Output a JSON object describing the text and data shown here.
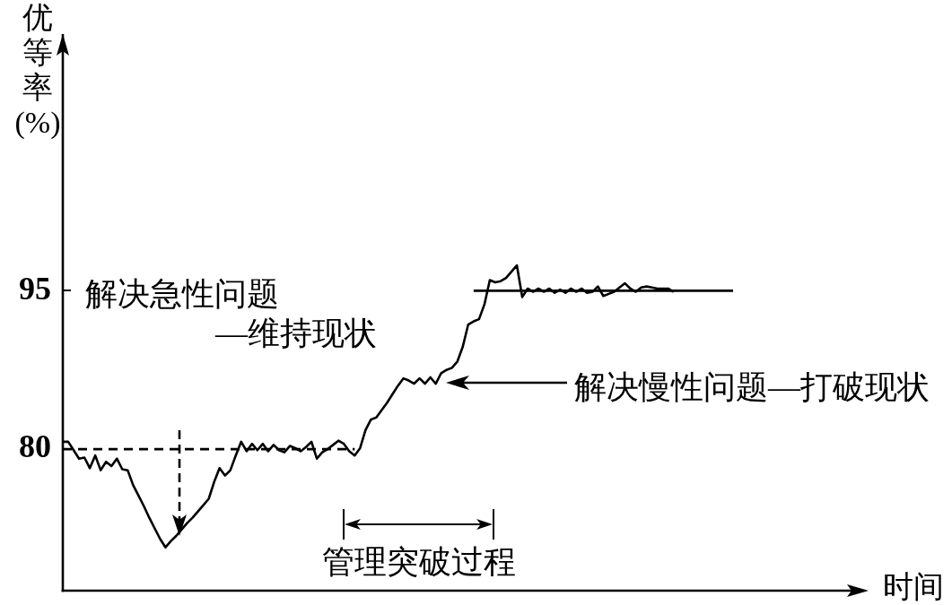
{
  "chart_data": {
    "type": "line",
    "xlabel": "时间",
    "ylabel": "优等率(%)",
    "categories": [
      null,
      null,
      null,
      null,
      null,
      null,
      null,
      null,
      null,
      null,
      null,
      null,
      null,
      null,
      null,
      null,
      null,
      null,
      null,
      null,
      null,
      null,
      null,
      null,
      null,
      null,
      null,
      null,
      null,
      null,
      null,
      null,
      null,
      null,
      null,
      null,
      null,
      null,
      null,
      null,
      null,
      null,
      null,
      null,
      null,
      null,
      null,
      null,
      null,
      null,
      null,
      null,
      null,
      null,
      null,
      null,
      null,
      null,
      null,
      null,
      null,
      null,
      null,
      null,
      null,
      null,
      null,
      null,
      null,
      null,
      null,
      null,
      null,
      null,
      null,
      null,
      null,
      null,
      null,
      null,
      null,
      null,
      null,
      null,
      null,
      null,
      null,
      null,
      null,
      null,
      null,
      null,
      null,
      null,
      null,
      null,
      null,
      null,
      null,
      null,
      null,
      null,
      null,
      null,
      null,
      null,
      null,
      null,
      null,
      null,
      null,
      null,
      null,
      null,
      null,
      null,
      null,
      null,
      null,
      null,
      null,
      null,
      null,
      null,
      null
    ],
    "series": [
      {
        "color": "#000000",
        "line_style": "solid",
        "values": [
          80.7,
          80.7,
          79.9,
          79.1,
          79.2,
          78.2,
          79.4,
          78.0,
          78.8,
          78.4,
          79.1,
          78.1,
          78.0,
          76.6,
          75.6,
          74.6,
          73.5,
          72.5,
          71.5,
          70.7,
          71.3,
          71.8,
          72.4,
          73.0,
          73.5,
          74.1,
          74.7,
          75.3,
          76.9,
          78.2,
          77.5,
          78.0,
          79.4,
          80.7,
          79.8,
          80.5,
          79.9,
          80.5,
          79.8,
          80.4,
          79.9,
          79.7,
          80.3,
          80.1,
          79.8,
          80.2,
          80.7,
          79.1,
          79.7,
          80.0,
          80.4,
          80.8,
          80.5,
          79.8,
          79.4,
          80.1,
          81.8,
          82.8,
          83.0,
          83.7,
          84.4,
          85.2,
          86.0,
          86.7,
          86.5,
          86.2,
          86.7,
          86.2,
          86.8,
          86.2,
          87.2,
          87.5,
          87.7,
          88.3,
          89.7,
          91.8,
          92.1,
          92.3,
          93.7,
          96.0,
          95.8,
          95.9,
          96.2,
          96.8,
          97.4,
          94.4,
          95.2,
          94.9,
          95.2,
          94.9,
          95.2,
          94.8,
          95.1,
          94.8,
          95.2,
          94.9,
          95.2,
          94.8,
          94.9,
          95.4,
          94.5,
          94.7,
          94.9,
          95.3,
          95.7,
          95.2,
          94.9,
          95.3,
          95.4,
          95.3,
          95.2,
          95.2,
          95.2,
          94.9,
          null,
          null,
          null,
          null,
          null,
          null,
          null,
          null,
          null,
          null,
          null
        ]
      },
      {
        "color": "#000000",
        "line_style": "dashed",
        "values": [
          80,
          80,
          80,
          80,
          80,
          80,
          80,
          80,
          80,
          80,
          80,
          80,
          80,
          80,
          80,
          80,
          80,
          80,
          80,
          80,
          80,
          80,
          80,
          80,
          80,
          80,
          80,
          80,
          80,
          80,
          80,
          80,
          80,
          80,
          80,
          80,
          80,
          80,
          80,
          80,
          80,
          80,
          80,
          80,
          80,
          80,
          80,
          80,
          80,
          80,
          80,
          80,
          80,
          80,
          80,
          null,
          null,
          null,
          null,
          null,
          null,
          null,
          null,
          null,
          null,
          null,
          null,
          null,
          null,
          null,
          null,
          null,
          null,
          null,
          null,
          null,
          null,
          null,
          null,
          null,
          null,
          null,
          null,
          null,
          null,
          null,
          null,
          null,
          null,
          null,
          null,
          null,
          null,
          null,
          null,
          null,
          null,
          null,
          null,
          null,
          null,
          null,
          null,
          null,
          null,
          null,
          null,
          null,
          null,
          null,
          null,
          null,
          null,
          null,
          null,
          null,
          null,
          null,
          null,
          null,
          null,
          null,
          null,
          null,
          null
        ]
      },
      {
        "color": "#000000",
        "line_style": "solid",
        "values": [
          null,
          null,
          null,
          null,
          null,
          null,
          null,
          null,
          null,
          null,
          null,
          null,
          null,
          null,
          null,
          null,
          null,
          null,
          null,
          null,
          null,
          null,
          null,
          null,
          null,
          null,
          null,
          null,
          null,
          null,
          null,
          null,
          null,
          null,
          null,
          null,
          null,
          null,
          null,
          null,
          null,
          null,
          null,
          null,
          null,
          null,
          null,
          null,
          null,
          null,
          null,
          null,
          null,
          null,
          null,
          null,
          null,
          null,
          null,
          null,
          null,
          null,
          null,
          null,
          null,
          null,
          null,
          null,
          null,
          null,
          null,
          null,
          null,
          null,
          null,
          null,
          95,
          95,
          95,
          95,
          95,
          95,
          95,
          95,
          95,
          95,
          95,
          95,
          95,
          95,
          95,
          95,
          95,
          95,
          95,
          95,
          95,
          95,
          95,
          95,
          95,
          95,
          95,
          95,
          95,
          95,
          95,
          95,
          95,
          95,
          95,
          95,
          95,
          95,
          95,
          95,
          95,
          95,
          95,
          95,
          95,
          95,
          95,
          95,
          95
        ]
      }
    ],
    "ylim": [
      66.6,
      119.3
    ],
    "yticks": [
      80,
      95
    ],
    "annotations": [
      "解决急性问题\n—维持现状",
      "解决慢性问题—打破现状",
      "管理突破过程"
    ],
    "marker": "none",
    "tick_labels": "y",
    "legend": false,
    "grid": false
  }
}
